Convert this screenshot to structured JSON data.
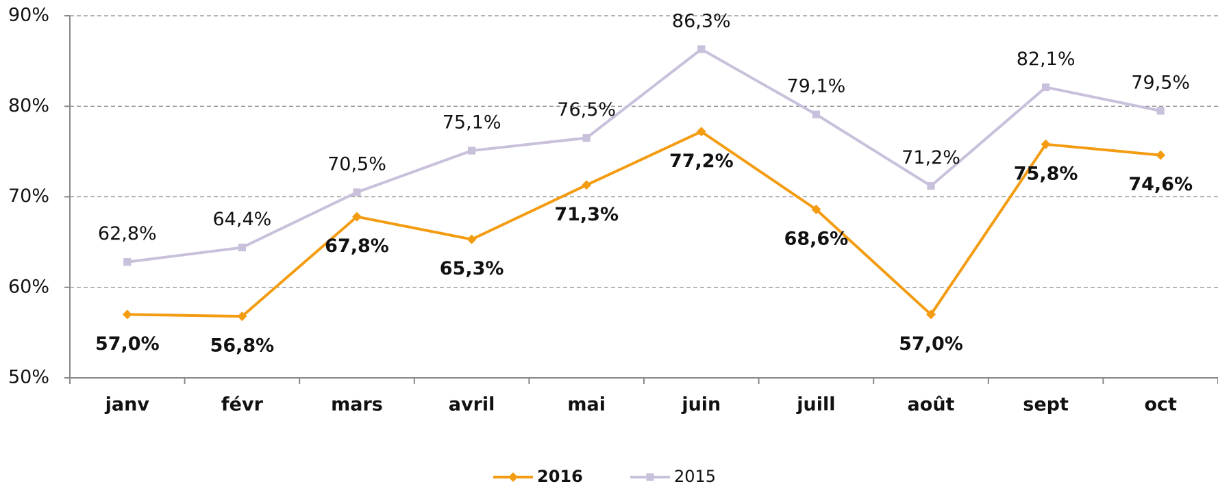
{
  "chart_data": {
    "type": "line",
    "categories": [
      "janv",
      "févr",
      "mars",
      "avril",
      "mai",
      "juin",
      "juill",
      "août",
      "sept",
      "oct"
    ],
    "series": [
      {
        "name": "2016",
        "color": "#f39c12",
        "marker": "diamond",
        "values": [
          57.0,
          56.8,
          67.8,
          65.3,
          71.3,
          77.2,
          68.6,
          57.0,
          75.8,
          74.6
        ],
        "value_labels": [
          "57,0%",
          "56,8%",
          "67,8%",
          "65,3%",
          "71,3%",
          "77,2%",
          "68,6%",
          "57,0%",
          "75,8%",
          "74,6%"
        ]
      },
      {
        "name": "2015",
        "color": "#c9c0dc",
        "marker": "square",
        "values": [
          62.8,
          64.4,
          70.5,
          75.1,
          76.5,
          86.3,
          79.1,
          71.2,
          82.1,
          79.5
        ],
        "value_labels": [
          "62,8%",
          "64,4%",
          "70,5%",
          "75,1%",
          "76,5%",
          "86,3%",
          "79,1%",
          "71,2%",
          "82,1%",
          "79,5%"
        ]
      }
    ],
    "ylim": [
      50,
      90
    ],
    "yticks": [
      {
        "value": 50,
        "label": "50%"
      },
      {
        "value": 60,
        "label": "60%"
      },
      {
        "value": 70,
        "label": "70%"
      },
      {
        "value": 80,
        "label": "80%"
      },
      {
        "value": 90,
        "label": "90%"
      }
    ],
    "grid": true,
    "legend": "bottom"
  }
}
